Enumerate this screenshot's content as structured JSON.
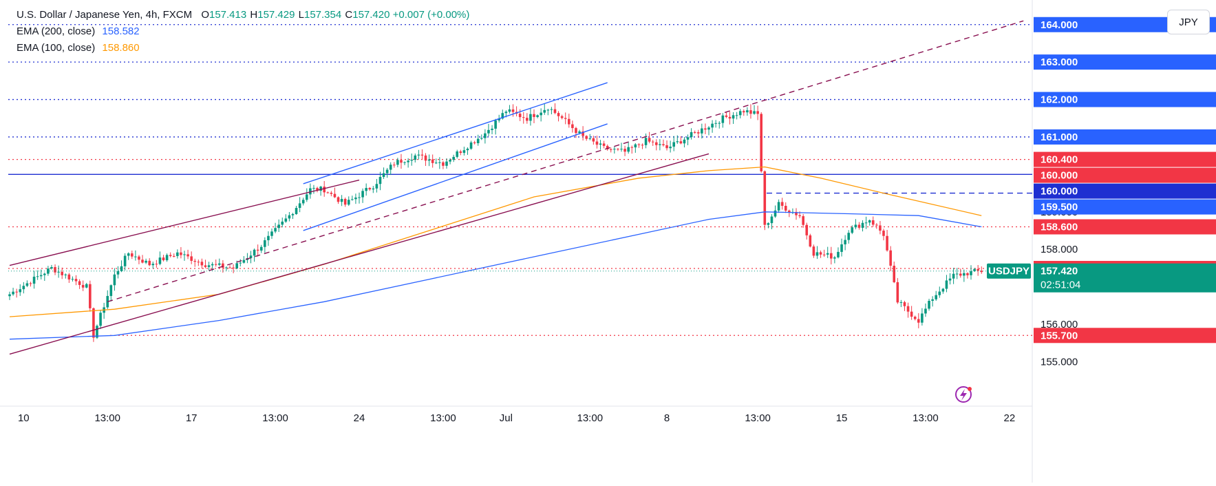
{
  "legend": {
    "title": "U.S. Dollar / Japanese Yen, 4h, FXCM",
    "o_label": "O",
    "o_value": "157.413",
    "h_label": "H",
    "h_value": "157.429",
    "l_label": "L",
    "l_value": "157.354",
    "c_label": "C",
    "c_value": "157.420",
    "change": "+0.007 (+0.00%)",
    "ema200_label": "EMA (200, close)",
    "ema200_value": "158.582",
    "ema100_label": "EMA (100, close)",
    "ema100_value": "158.860"
  },
  "currency_button": "JPY",
  "colors": {
    "up": "#089981",
    "down": "#f23645",
    "ema200": "#2962ff",
    "ema100": "#ff9800",
    "channel_maroon": "#880e4f",
    "channel_blue": "#2962ff",
    "level_blue": "#1e2fd1",
    "level_red": "#f23645",
    "price_badge": "#089981"
  },
  "chart_data": {
    "type": "candlestick",
    "title": "U.S. Dollar / Japanese Yen, 4h, FXCM",
    "currency": "JPY",
    "ylim": [
      154.6,
      164.4
    ],
    "y_ticks": [
      "155.000",
      "156.000",
      "158.000",
      "159.000"
    ],
    "x_ticks": [
      "10",
      "13:00",
      "17",
      "13:00",
      "24",
      "13:00",
      "Jul",
      "13:00",
      "8",
      "13:00",
      "15",
      "13:00",
      "22"
    ],
    "horizontal_levels": [
      {
        "value": "164.000",
        "style": "dotted",
        "color": "blue"
      },
      {
        "value": "163.000",
        "style": "dotted",
        "color": "blue"
      },
      {
        "value": "162.000",
        "style": "dotted",
        "color": "blue"
      },
      {
        "value": "161.000",
        "style": "dotted",
        "color": "blue"
      },
      {
        "value": "160.400",
        "style": "dotted",
        "color": "red"
      },
      {
        "value": "160.000",
        "style": "solid",
        "color": "blue"
      },
      {
        "value": "159.500",
        "style": "dashed",
        "color": "blue"
      },
      {
        "value": "158.600",
        "style": "dotted",
        "color": "red"
      },
      {
        "value": "157.488",
        "style": "dotted",
        "color": "red"
      },
      {
        "value": "155.700",
        "style": "dotted",
        "color": "red"
      }
    ],
    "axis_badges": [
      {
        "text": "164.000",
        "kind": "blue"
      },
      {
        "text": "163.000",
        "kind": "blue"
      },
      {
        "text": "162.000",
        "kind": "blue"
      },
      {
        "text": "161.000",
        "kind": "blue"
      },
      {
        "text": "160.400",
        "kind": "red"
      },
      {
        "text": "160.000",
        "kind": "red"
      },
      {
        "text": "160.000",
        "kind": "blue"
      },
      {
        "text": "159.500",
        "kind": "blue"
      },
      {
        "text": "158.600",
        "kind": "red"
      },
      {
        "text": "157.488",
        "kind": "red"
      },
      {
        "text": "155.700",
        "kind": "red"
      }
    ],
    "current_price": {
      "symbol": "USDJPY",
      "value": "157.420",
      "countdown": "02:51:04"
    },
    "anchors": [
      [
        0,
        156.8
      ],
      [
        12,
        157.5
      ],
      [
        22,
        157.0
      ],
      [
        24,
        155.7
      ],
      [
        30,
        157.3
      ],
      [
        34,
        157.9
      ],
      [
        40,
        157.6
      ],
      [
        48,
        157.9
      ],
      [
        56,
        157.6
      ],
      [
        64,
        157.5
      ],
      [
        72,
        158.1
      ],
      [
        80,
        158.9
      ],
      [
        86,
        159.6
      ],
      [
        90,
        159.6
      ],
      [
        96,
        159.2
      ],
      [
        104,
        159.7
      ],
      [
        110,
        160.3
      ],
      [
        116,
        160.5
      ],
      [
        124,
        160.3
      ],
      [
        130,
        160.7
      ],
      [
        136,
        161.1
      ],
      [
        142,
        161.7
      ],
      [
        148,
        161.5
      ],
      [
        154,
        161.8
      ],
      [
        158,
        161.5
      ],
      [
        164,
        161.0
      ],
      [
        170,
        160.7
      ],
      [
        176,
        160.6
      ],
      [
        182,
        160.9
      ],
      [
        188,
        160.7
      ],
      [
        196,
        161.1
      ],
      [
        204,
        161.5
      ],
      [
        210,
        161.7
      ],
      [
        214,
        161.6
      ],
      [
        216,
        158.6
      ],
      [
        220,
        159.2
      ],
      [
        226,
        158.9
      ],
      [
        230,
        157.9
      ],
      [
        236,
        157.8
      ],
      [
        240,
        158.5
      ],
      [
        246,
        158.8
      ],
      [
        250,
        158.4
      ],
      [
        254,
        156.6
      ],
      [
        260,
        156.1
      ],
      [
        264,
        156.7
      ],
      [
        270,
        157.3
      ],
      [
        276,
        157.4
      ],
      [
        278,
        157.42
      ]
    ],
    "ema200": [
      [
        0,
        155.6
      ],
      [
        30,
        155.7
      ],
      [
        60,
        156.1
      ],
      [
        90,
        156.6
      ],
      [
        120,
        157.2
      ],
      [
        150,
        157.8
      ],
      [
        180,
        158.4
      ],
      [
        200,
        158.8
      ],
      [
        216,
        159.0
      ],
      [
        240,
        158.95
      ],
      [
        260,
        158.9
      ],
      [
        278,
        158.6
      ]
    ],
    "ema100": [
      [
        0,
        156.2
      ],
      [
        30,
        156.4
      ],
      [
        60,
        156.8
      ],
      [
        90,
        157.6
      ],
      [
        120,
        158.5
      ],
      [
        150,
        159.4
      ],
      [
        180,
        159.9
      ],
      [
        200,
        160.1
      ],
      [
        216,
        160.2
      ],
      [
        232,
        159.9
      ],
      [
        250,
        159.5
      ],
      [
        278,
        158.9
      ]
    ],
    "trendlines": [
      {
        "name": "",
        "style": "solid",
        "color": "maroon",
        "points": [
          [
            0,
            157.57
          ],
          [
            100,
            159.85
          ]
        ]
      },
      {
        "name": "",
        "style": "solid",
        "color": "maroon",
        "points": [
          [
            0,
            155.2
          ],
          [
            200,
            160.55
          ]
        ]
      },
      {
        "name": "",
        "style": "dashed",
        "color": "maroon",
        "points": [
          [
            28,
            156.6
          ],
          [
            290,
            164.1
          ]
        ]
      },
      {
        "name": "",
        "style": "solid",
        "color": "blue",
        "points": [
          [
            84,
            159.75
          ],
          [
            171,
            162.45
          ]
        ]
      },
      {
        "name": "",
        "style": "solid",
        "color": "blue",
        "points": [
          [
            84,
            158.5
          ],
          [
            171,
            161.35
          ]
        ]
      }
    ]
  }
}
